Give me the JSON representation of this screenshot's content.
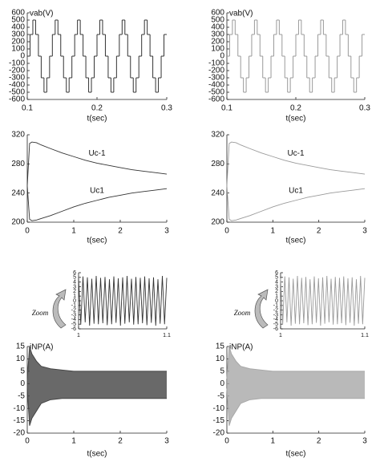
{
  "chart_data": [
    {
      "type": "line",
      "step": true,
      "y_label": "vab(V)",
      "x_label": "t(sec)",
      "xlim": [
        0.1,
        0.3
      ],
      "xticks": [
        0.1,
        0.2,
        0.3
      ],
      "ylim": [
        -600,
        600
      ],
      "yticks": [
        600,
        500,
        400,
        300,
        200,
        100,
        0,
        -100,
        -200,
        -300,
        -400,
        -500,
        -600
      ],
      "x": [
        0.1,
        0.104,
        0.108,
        0.112,
        0.116,
        0.12,
        0.124,
        0.128,
        0.132,
        0.136,
        0.14,
        0.144,
        0.148,
        0.152,
        0.156,
        0.16,
        0.164,
        0.168,
        0.172,
        0.176,
        0.18,
        0.184,
        0.188,
        0.192,
        0.196,
        0.2,
        0.204,
        0.208,
        0.212,
        0.216,
        0.22,
        0.224,
        0.228,
        0.232,
        0.236,
        0.24,
        0.244,
        0.248,
        0.252,
        0.256,
        0.26,
        0.264,
        0.268,
        0.272,
        0.276,
        0.28,
        0.284,
        0.288,
        0.292,
        0.296
      ],
      "series": [
        {
          "color": "#333333",
          "values": [
            0,
            300,
            500,
            300,
            0,
            -300,
            -500,
            -300,
            0,
            300,
            500,
            300,
            0,
            -300,
            -500,
            -300,
            0,
            300,
            500,
            300,
            0,
            -300,
            -500,
            -300,
            0,
            300,
            500,
            300,
            0,
            -300,
            -500,
            -300,
            0,
            300,
            500,
            300,
            0,
            -300,
            -500,
            -300,
            0,
            300,
            500,
            300,
            0,
            -300,
            -500,
            -300,
            0,
            300
          ]
        }
      ]
    },
    {
      "type": "line",
      "step": true,
      "y_label": "vab(V)",
      "x_label": "t(sec)",
      "xlim": [
        0.1,
        0.3
      ],
      "xticks": [
        0.1,
        0.2,
        0.3
      ],
      "ylim": [
        -600,
        600
      ],
      "yticks": [
        600,
        500,
        400,
        300,
        200,
        100,
        0,
        -100,
        -200,
        -300,
        -400,
        -500,
        -600
      ],
      "x": [
        0.1,
        0.104,
        0.108,
        0.112,
        0.116,
        0.12,
        0.124,
        0.128,
        0.132,
        0.136,
        0.14,
        0.144,
        0.148,
        0.152,
        0.156,
        0.16,
        0.164,
        0.168,
        0.172,
        0.176,
        0.18,
        0.184,
        0.188,
        0.192,
        0.196,
        0.2,
        0.204,
        0.208,
        0.212,
        0.216,
        0.22,
        0.224,
        0.228,
        0.232,
        0.236,
        0.24,
        0.244,
        0.248,
        0.252,
        0.256,
        0.26,
        0.264,
        0.268,
        0.272,
        0.276,
        0.28,
        0.284,
        0.288,
        0.292,
        0.296
      ],
      "series": [
        {
          "color": "#9a9a9a",
          "values": [
            0,
            300,
            500,
            300,
            0,
            -300,
            -500,
            -300,
            0,
            300,
            500,
            300,
            0,
            -300,
            -500,
            -300,
            0,
            300,
            500,
            300,
            0,
            -300,
            -500,
            -300,
            0,
            300,
            500,
            300,
            0,
            -300,
            -500,
            -300,
            0,
            300,
            500,
            300,
            0,
            -300,
            -500,
            -300,
            0,
            300,
            500,
            300,
            0,
            -300,
            -500,
            -300,
            0,
            300
          ]
        }
      ]
    },
    {
      "type": "line",
      "x_label": "t(sec)",
      "xlim": [
        0,
        3
      ],
      "xticks": [
        0,
        1,
        2,
        3
      ],
      "ylim": [
        200,
        320
      ],
      "yticks": [
        320,
        280,
        240,
        200
      ],
      "x": [
        0,
        0.05,
        0.1,
        0.2,
        0.3,
        0.5,
        0.75,
        1,
        1.25,
        1.5,
        1.75,
        2,
        2.25,
        2.5,
        2.75,
        3
      ],
      "series": [
        {
          "name": "Uc-1",
          "color": "#333333",
          "values": [
            250,
            308,
            310,
            309,
            306,
            301,
            295,
            290,
            285,
            281,
            278,
            275,
            272,
            270,
            268,
            266
          ]
        },
        {
          "name": "Uc1",
          "color": "#333333",
          "values": [
            250,
            204,
            202,
            203,
            205,
            209,
            215,
            221,
            226,
            230,
            234,
            237,
            240,
            242,
            244,
            246
          ]
        }
      ]
    },
    {
      "type": "line",
      "x_label": "t(sec)",
      "xlim": [
        0,
        3
      ],
      "xticks": [
        0,
        1,
        2,
        3
      ],
      "ylim": [
        200,
        320
      ],
      "yticks": [
        320,
        280,
        240,
        200
      ],
      "x": [
        0,
        0.05,
        0.1,
        0.2,
        0.3,
        0.5,
        0.75,
        1,
        1.25,
        1.5,
        1.75,
        2,
        2.25,
        2.5,
        2.75,
        3
      ],
      "series": [
        {
          "name": "Uc-1",
          "color": "#9a9a9a",
          "values": [
            250,
            308,
            310,
            309,
            306,
            301,
            295,
            290,
            285,
            281,
            278,
            275,
            272,
            270,
            268,
            266
          ]
        },
        {
          "name": "Uc1",
          "color": "#9a9a9a",
          "values": [
            250,
            204,
            202,
            203,
            205,
            209,
            215,
            221,
            226,
            230,
            234,
            237,
            240,
            242,
            244,
            246
          ]
        }
      ]
    },
    {
      "type": "line",
      "annotation": "Zoom",
      "xlim": [
        1,
        1.1
      ],
      "xticks": [
        1,
        1.1
      ],
      "ylim": [
        -6,
        6
      ],
      "yticks": [
        6,
        5,
        4,
        3,
        2,
        1,
        0,
        -1,
        -2,
        -3,
        -4,
        -5,
        -6
      ],
      "x": [
        1,
        1.0025,
        1.005,
        1.0075,
        1.01,
        1.0125,
        1.015,
        1.0175,
        1.02,
        1.0225,
        1.025,
        1.0275,
        1.03,
        1.0325,
        1.035,
        1.0375,
        1.04,
        1.0425,
        1.045,
        1.0475,
        1.05,
        1.0525,
        1.055,
        1.0575,
        1.06,
        1.0625,
        1.065,
        1.0675,
        1.07,
        1.0725,
        1.075,
        1.0775,
        1.08,
        1.0825,
        1.085,
        1.0875,
        1.09,
        1.0925,
        1.095,
        1.0975,
        1.1
      ],
      "series": [
        {
          "color": "#333333",
          "values": [
            4.8,
            -5.1,
            5.2,
            -4.6,
            5.0,
            -5.3,
            4.7,
            -4.9,
            5.3,
            -5.0,
            4.9,
            -4.8,
            5.1,
            -5.2,
            4.6,
            -5.0,
            5.2,
            -4.7,
            4.8,
            -5.3,
            5.0,
            -4.9,
            5.3,
            -4.6,
            4.7,
            -5.1,
            5.1,
            -5.0,
            4.9,
            -4.8,
            5.2,
            -5.2,
            4.8,
            -4.7,
            5.0,
            -5.3,
            4.6,
            -4.9,
            5.3,
            -5.0,
            4.9
          ]
        }
      ]
    },
    {
      "type": "line",
      "annotation": "Zoom",
      "xlim": [
        1,
        1.1
      ],
      "xticks": [
        1,
        1.1
      ],
      "ylim": [
        -6,
        6
      ],
      "yticks": [
        6,
        5,
        4,
        3,
        2,
        1,
        0,
        -1,
        -2,
        -3,
        -4,
        -5,
        -6
      ],
      "x": [
        1,
        1.0025,
        1.005,
        1.0075,
        1.01,
        1.0125,
        1.015,
        1.0175,
        1.02,
        1.0225,
        1.025,
        1.0275,
        1.03,
        1.0325,
        1.035,
        1.0375,
        1.04,
        1.0425,
        1.045,
        1.0475,
        1.05,
        1.0525,
        1.055,
        1.0575,
        1.06,
        1.0625,
        1.065,
        1.0675,
        1.07,
        1.0725,
        1.075,
        1.0775,
        1.08,
        1.0825,
        1.085,
        1.0875,
        1.09,
        1.0925,
        1.095,
        1.0975,
        1.1
      ],
      "series": [
        {
          "color": "#9a9a9a",
          "values": [
            4.8,
            -5.1,
            5.2,
            -4.6,
            5.0,
            -5.3,
            4.7,
            -4.9,
            5.3,
            -5.0,
            4.9,
            -4.8,
            5.1,
            -5.2,
            4.6,
            -5.0,
            5.2,
            -4.7,
            4.8,
            -5.3,
            5.0,
            -4.9,
            5.3,
            -4.6,
            4.7,
            -5.1,
            5.1,
            -5.0,
            4.9,
            -4.8,
            5.2,
            -5.2,
            4.8,
            -4.7,
            5.0,
            -5.3,
            4.6,
            -4.9,
            5.3,
            -5.0,
            4.9
          ]
        }
      ]
    },
    {
      "type": "band",
      "y_label": "iNP(A)",
      "x_label": "t(sec)",
      "color": "#444444",
      "xlim": [
        0,
        3
      ],
      "xticks": [
        0,
        1,
        2,
        3
      ],
      "ylim": [
        -20,
        15
      ],
      "yticks": [
        15,
        10,
        5,
        0,
        -5,
        -10,
        -15,
        -20
      ],
      "x": [
        0,
        0.05,
        0.1,
        0.2,
        0.3,
        0.5,
        0.75,
        1,
        1.5,
        2,
        2.5,
        3
      ],
      "upper": [
        2,
        15,
        12,
        9,
        7,
        6,
        5.5,
        5,
        5,
        5,
        5,
        5
      ],
      "lower": [
        -2,
        -17,
        -14,
        -11,
        -8,
        -6.5,
        -6,
        -6,
        -6,
        -6,
        -6,
        -6
      ]
    },
    {
      "type": "band",
      "y_label": "iNP(A)",
      "x_label": "t(sec)",
      "color": "#a8a8a8",
      "xlim": [
        0,
        3
      ],
      "xticks": [
        0,
        1,
        2,
        3
      ],
      "ylim": [
        -20,
        15
      ],
      "yticks": [
        15,
        10,
        5,
        0,
        -5,
        -10,
        -15,
        -20
      ],
      "x": [
        0,
        0.05,
        0.1,
        0.2,
        0.3,
        0.5,
        0.75,
        1,
        1.5,
        2,
        2.5,
        3
      ],
      "upper": [
        2,
        15,
        12,
        9,
        7,
        6,
        5.5,
        5,
        5,
        5,
        5,
        5
      ],
      "lower": [
        -2,
        -17,
        -14,
        -11,
        -8,
        -6.5,
        -6,
        -6,
        -6,
        -6,
        -6,
        -6
      ]
    }
  ]
}
